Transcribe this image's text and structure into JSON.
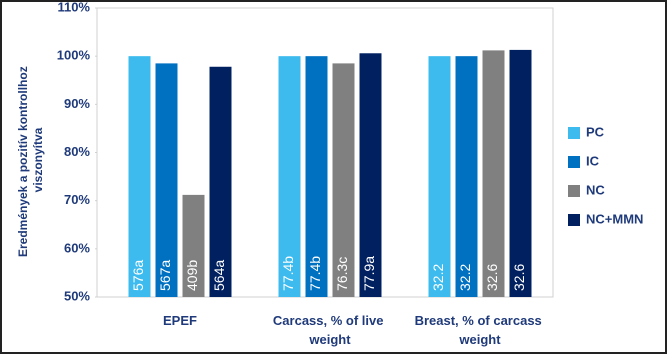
{
  "chart_data": {
    "type": "bar",
    "y_label": "Eredmények a pozitív kontrollhoz viszonyítva",
    "categories": [
      "EPEF",
      "Carcass, % of live weight",
      "Breast, % of carcass weight"
    ],
    "series": [
      {
        "name": "PC",
        "color": "#3dbbee",
        "values": [
          100,
          100,
          100
        ],
        "bar_texts": [
          "576a",
          "77.4b",
          "32.2"
        ]
      },
      {
        "name": "IC",
        "color": "#0070c0",
        "values": [
          98.5,
          100,
          100
        ],
        "bar_texts": [
          "567a",
          "77.4b",
          "32.2"
        ]
      },
      {
        "name": "NC",
        "color": "#808080",
        "values": [
          71.2,
          98.5,
          101.2
        ],
        "bar_texts": [
          "409b",
          "76.3c",
          "32.6"
        ]
      },
      {
        "name": "NC+MMN",
        "color": "#002060",
        "values": [
          97.8,
          100.6,
          101.3
        ],
        "bar_texts": [
          "564a",
          "77.9a",
          "32.6"
        ]
      }
    ],
    "ylim": [
      50,
      110
    ],
    "yticks": [
      {
        "value": 50,
        "label": "50%"
      },
      {
        "value": 60,
        "label": "60%"
      },
      {
        "value": 70,
        "label": "70%"
      },
      {
        "value": 80,
        "label": "80%"
      },
      {
        "value": 90,
        "label": "90%"
      },
      {
        "value": 100,
        "label": "100%"
      },
      {
        "value": 110,
        "label": "110%"
      }
    ],
    "legend": "right"
  }
}
